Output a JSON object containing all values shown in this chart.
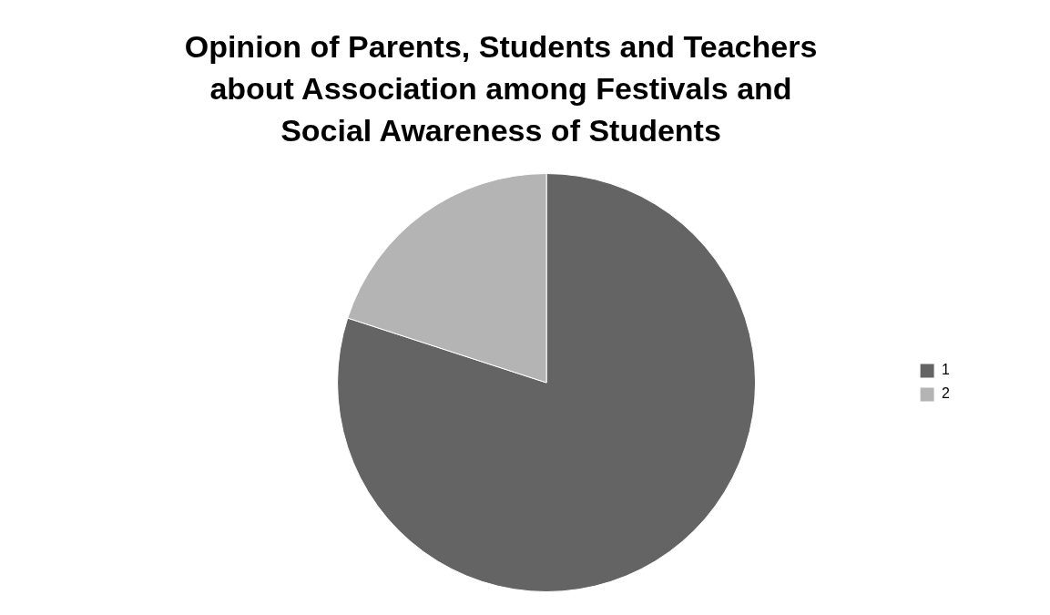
{
  "chart_data": {
    "type": "pie",
    "title": "Opinion of Parents, Students and Teachers about Association among Festivals and Social Awareness of Students",
    "categories": [
      "1",
      "2"
    ],
    "values": [
      80,
      20
    ],
    "colors": [
      "#646464",
      "#b4b4b4"
    ],
    "legend": "right"
  }
}
